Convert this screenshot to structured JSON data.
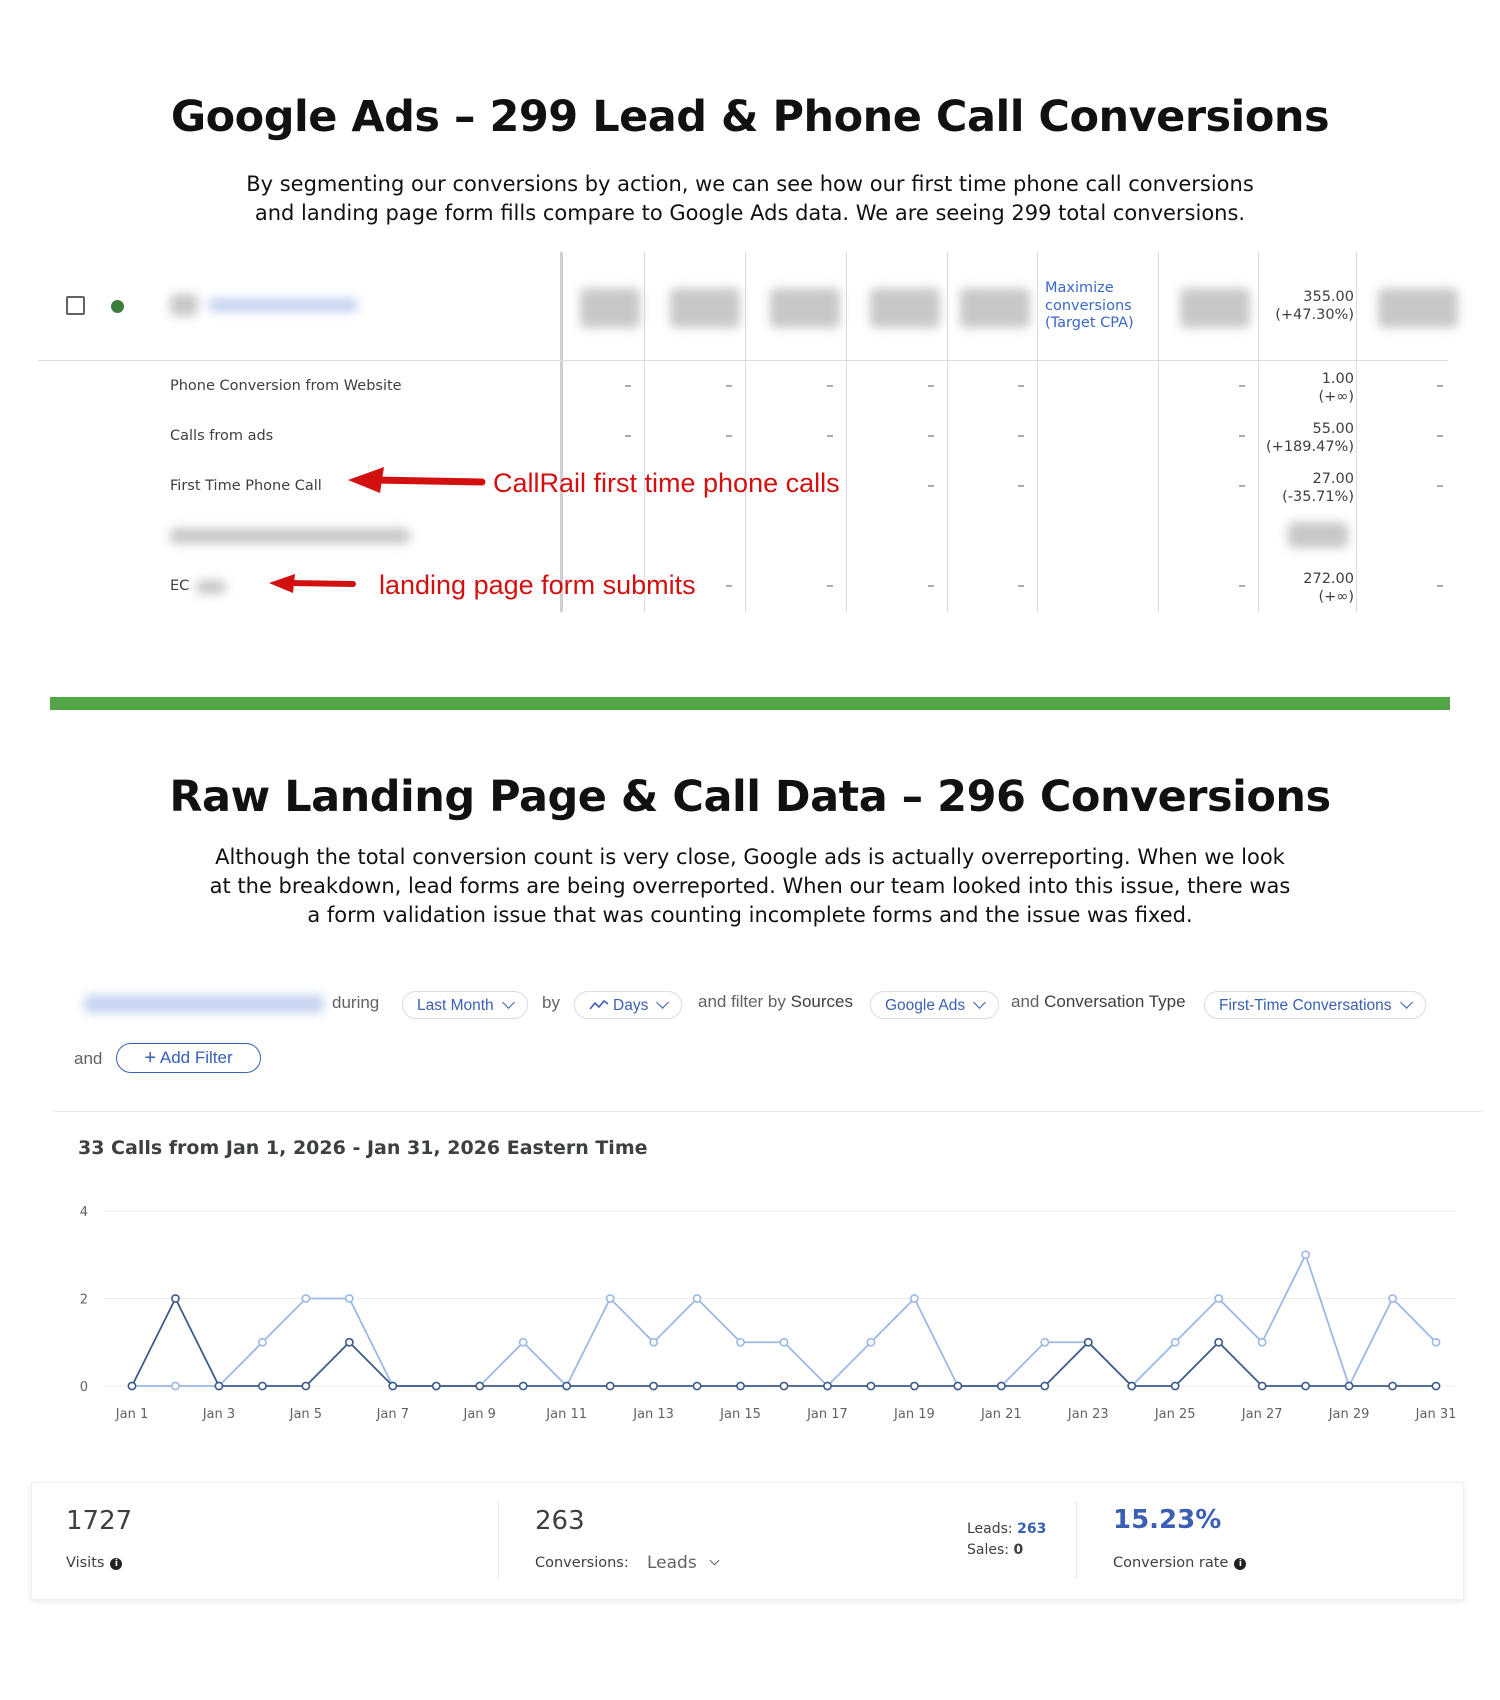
{
  "section1": {
    "title": "Google Ads – 299 Lead & Phone Call Conversions",
    "description_line1": "By segmenting our conversions by action, we can see how our first time phone call conversions",
    "description_line2": "and landing page form fills compare to Google Ads data. We are seeing 299 total conversions."
  },
  "ads_table": {
    "bid_strategy": "Maximize conversions (Target CPA)",
    "campaign_total": {
      "value": "355.00",
      "change": "(+47.30%)"
    },
    "dash": "–",
    "rows": [
      {
        "label": "Phone Conversion from Website",
        "value": "1.00",
        "change": "(+∞)"
      },
      {
        "label": "Calls from ads",
        "value": "55.00",
        "change": "(+189.47%)"
      },
      {
        "label": "First Time Phone Call",
        "value": "27.00",
        "change": "(-35.71%)"
      },
      {
        "label": "EC",
        "value": "272.00",
        "change": "(+∞)"
      }
    ],
    "annotation_calls": "CallRail first time phone calls",
    "annotation_forms": "landing page form submits",
    "annotation_color": "#d31010"
  },
  "divider_color": "#54a547",
  "section2": {
    "title": "Raw Landing Page  & Call Data – 296 Conversions",
    "description_line1": "Although the total conversion count is very close, Google ads is actually overreporting. When we look",
    "description_line2": "at the breakdown, lead forms are being overreported. When our team looked into this issue, there was",
    "description_line3": "a form validation issue that was counting incomplete forms and the issue was fixed."
  },
  "filters": {
    "during": "during",
    "date_range": "Last Month",
    "by": "by",
    "interval": "Days",
    "and_filter_by": "and filter by",
    "sources_label": "Sources",
    "source_value": "Google Ads",
    "and": "and",
    "conversation_type_label": "Conversation Type",
    "conversation_type_value": "First-Time Conversations",
    "and2": "and",
    "add_filter": "Add Filter"
  },
  "chart_data": {
    "type": "line",
    "title": "33 Calls from Jan 1, 2026 - Jan 31, 2026 Eastern Time",
    "x": [
      "Jan 1",
      "Jan 2",
      "Jan 3",
      "Jan 4",
      "Jan 5",
      "Jan 6",
      "Jan 7",
      "Jan 8",
      "Jan 9",
      "Jan 10",
      "Jan 11",
      "Jan 12",
      "Jan 13",
      "Jan 14",
      "Jan 15",
      "Jan 16",
      "Jan 17",
      "Jan 18",
      "Jan 19",
      "Jan 20",
      "Jan 21",
      "Jan 22",
      "Jan 23",
      "Jan 24",
      "Jan 25",
      "Jan 26",
      "Jan 27",
      "Jan 28",
      "Jan 29",
      "Jan 30",
      "Jan 31"
    ],
    "x_tick_labels": [
      "Jan 1",
      "Jan 3",
      "Jan 5",
      "Jan 7",
      "Jan 9",
      "Jan 11",
      "Jan 13",
      "Jan 15",
      "Jan 17",
      "Jan 19",
      "Jan 21",
      "Jan 23",
      "Jan 25",
      "Jan 27",
      "Jan 29",
      "Jan 31"
    ],
    "y_ticks": [
      0,
      2,
      4
    ],
    "ylim": [
      0,
      4
    ],
    "grid": true,
    "series": [
      {
        "color": "#9bb8e6",
        "values": [
          0,
          0,
          0,
          1,
          2,
          2,
          0,
          0,
          0,
          1,
          0,
          2,
          1,
          2,
          1,
          1,
          0,
          1,
          2,
          0,
          0,
          1,
          1,
          0,
          1,
          2,
          1,
          3,
          0,
          2,
          1
        ]
      },
      {
        "color": "#3c5a8a",
        "values": [
          0,
          2,
          0,
          0,
          0,
          1,
          0,
          0,
          0,
          0,
          0,
          0,
          0,
          0,
          0,
          0,
          0,
          0,
          0,
          0,
          0,
          0,
          1,
          0,
          0,
          1,
          0,
          0,
          0,
          0,
          0
        ]
      }
    ]
  },
  "stats": {
    "visits_value": "1727",
    "visits_label": "Visits",
    "conversions_value": "263",
    "conversions_label": "Conversions:",
    "conversions_type": "Leads",
    "leads_label": "Leads:",
    "leads_value": "263",
    "sales_label": "Sales:",
    "sales_value": "0",
    "conversion_rate_value": "15.23%",
    "conversion_rate_label": "Conversion rate",
    "info_glyph": "i"
  }
}
